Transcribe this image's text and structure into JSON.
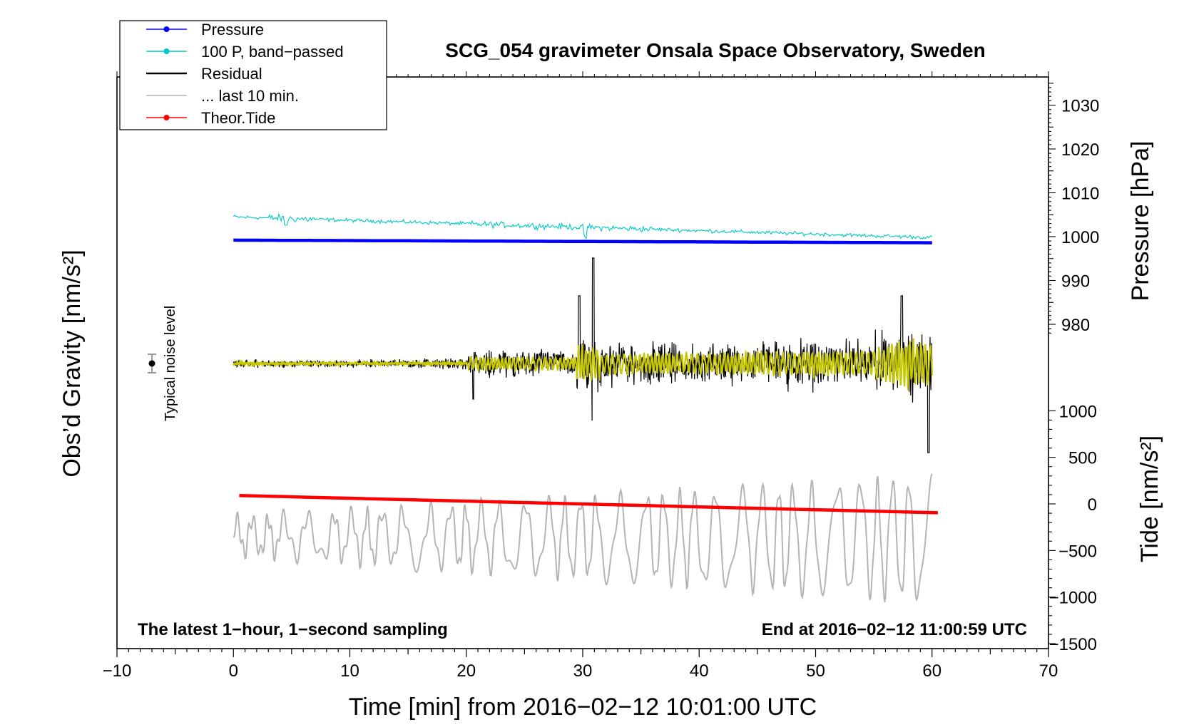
{
  "chart_data": {
    "type": "line",
    "title": "SCG_054 gravimeter Onsala Space Observatory, Sweden",
    "xlabel": "Time [min] from 2016−02−12 10:01:00 UTC",
    "ylabel_left": "Obs’d Gravity [nm/s²]",
    "ylabel_right_pressure": "Pressure [hPa]",
    "ylabel_right_tide": "Tide [nm/s²]",
    "x_range": [
      -10,
      70
    ],
    "x_ticks": [
      -10,
      0,
      10,
      20,
      30,
      40,
      50,
      60,
      70
    ],
    "x_tick_labels": [
      "−10",
      "0",
      "10",
      "20",
      "30",
      "40",
      "50",
      "60",
      "70"
    ],
    "pressure_axis": {
      "ticks": [
        980,
        990,
        1000,
        1010,
        1020,
        1030
      ],
      "tick_labels": [
        "980",
        "990",
        "1000",
        "1010",
        "1020",
        "1030"
      ]
    },
    "tide_axis": {
      "ticks": [
        -1500,
        -1000,
        -500,
        0,
        500,
        1000
      ],
      "tick_labels": [
        "−1500",
        "−1000",
        "−500",
        "0",
        "500",
        "1000"
      ]
    },
    "note_left": "The latest 1−hour, 1−second sampling",
    "note_right": "End at 2016−02−12 11:00:59 UTC",
    "noise_label": "Typical noise level",
    "legend": [
      {
        "label": "Pressure",
        "color": "#0000ff",
        "marker": true
      },
      {
        "label": "100 P, band−passed",
        "color": "#00c8c8",
        "marker": true
      },
      {
        "label": "Residual",
        "color": "#000000",
        "marker": false
      },
      {
        "label": "... last 10 min.",
        "color": "#b4b4b4",
        "marker": false
      },
      {
        "label": "Theor.Tide",
        "color": "#ff0000",
        "marker": true
      }
    ],
    "series": [
      {
        "name": "Pressure",
        "axis": "pressure",
        "color": "#0000ff",
        "x": [
          0,
          60
        ],
        "y": [
          999.2,
          998.6
        ]
      },
      {
        "name": "100 P, band-passed",
        "axis": "pressure",
        "color": "#00c8c8",
        "description_level": [
          1004.5,
          999.8
        ]
      },
      {
        "name": "Theor.Tide",
        "axis": "tide",
        "color": "#ff0000",
        "x": [
          0.5,
          60.5
        ],
        "y": [
          90,
          -95
        ]
      },
      {
        "name": "Residual",
        "axis": "gravity",
        "color": "#000000"
      },
      {
        "name": "... last 10 min.",
        "axis": "gravity",
        "color": "#b4b4b4"
      }
    ]
  },
  "colors": {
    "pressure": "#0000ff",
    "bandpassed": "#00c8c8",
    "residual": "#000000",
    "last10": "#b4b4b4",
    "tide": "#ff0000",
    "lowpass": "#c8c800"
  }
}
